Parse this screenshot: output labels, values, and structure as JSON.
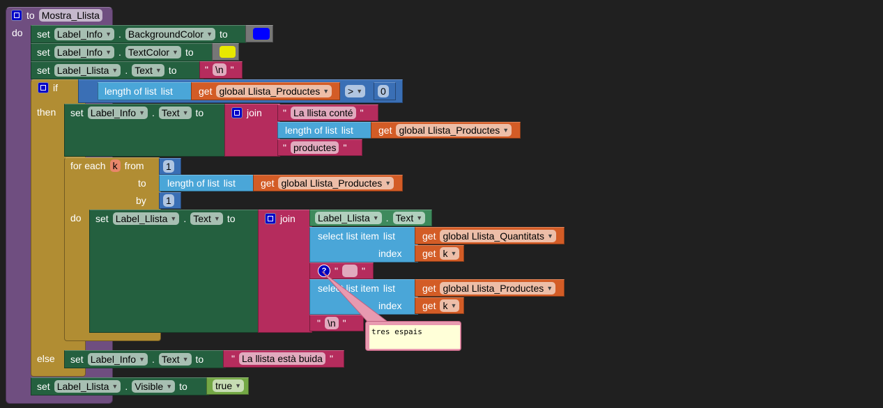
{
  "procedure": {
    "to": "to",
    "name": "Mostra_Llista",
    "do": "do"
  },
  "set_kw": "set",
  "to_kw": "to",
  "dot": ".",
  "stmt1": {
    "component": "Label_Info",
    "property": "BackgroundColor",
    "color": "#0000ff"
  },
  "stmt2": {
    "component": "Label_Info",
    "property": "TextColor",
    "color": "#e8e800"
  },
  "stmt3": {
    "component": "Label_Llista",
    "property": "Text",
    "value": "\\n"
  },
  "if_block": {
    "if": "if",
    "then": "then",
    "else": "else"
  },
  "cond": {
    "length": "length of list",
    "list": "list",
    "get": "get",
    "var": "global Llista_Productes",
    "op": ">",
    "num": "0"
  },
  "then_set": {
    "component": "Label_Info",
    "property": "Text",
    "join": "join",
    "text1": "La llista conté",
    "length": "length of list",
    "list": "list",
    "get": "get",
    "var": "global Llista_Productes",
    "text2": "productes"
  },
  "for_each": {
    "label": "for each",
    "var": "k",
    "from": "from",
    "to": "to",
    "by": "by",
    "do": "do",
    "from_val": "1",
    "by_val": "1",
    "length": "length of list",
    "list": "list",
    "get": "get",
    "var_to": "global Llista_Productes"
  },
  "inner_set": {
    "component": "Label_Llista",
    "property": "Text",
    "join": "join",
    "getter_component": "Label_Llista",
    "getter_property": "Text",
    "select1": {
      "label": "select list item",
      "list": "list",
      "index": "index",
      "get": "get",
      "var": "global Llista_Quantitats",
      "idx": "k"
    },
    "spaces": "   ",
    "select2": {
      "label": "select list item",
      "list": "list",
      "index": "index",
      "get": "get",
      "var": "global Llista_Productes",
      "idx": "k"
    },
    "newline": "\\n"
  },
  "comment": {
    "text": "tres espais",
    "icon": "question-icon"
  },
  "else_set": {
    "component": "Label_Info",
    "property": "Text",
    "value": "La llista està buida"
  },
  "final_set": {
    "component": "Label_Llista",
    "property": "Visible",
    "value": "true"
  },
  "quote": "\""
}
